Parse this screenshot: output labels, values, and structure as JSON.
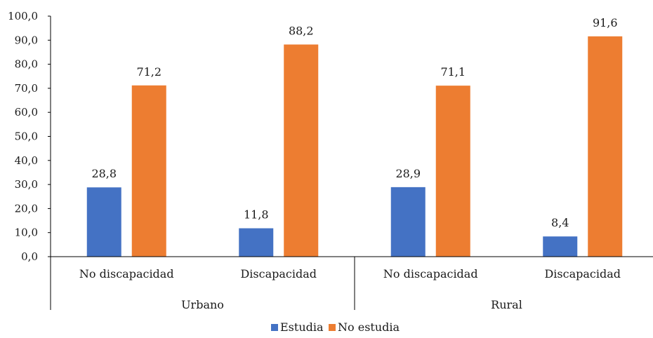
{
  "chart_data": {
    "type": "bar",
    "title": "",
    "xlabel": "",
    "ylabel": "",
    "ylim": [
      0,
      100
    ],
    "y_ticks": [
      "0,0",
      "10,0",
      "20,0",
      "30,0",
      "40,0",
      "50,0",
      "60,0",
      "70,0",
      "80,0",
      "90,0",
      "100,0"
    ],
    "groups": [
      {
        "label": "Urbano",
        "categories": [
          "No discapacidad",
          "Discapacidad"
        ]
      },
      {
        "label": "Rural",
        "categories": [
          "No discapacidad",
          "Discapacidad"
        ]
      }
    ],
    "categories": [
      "No discapacidad",
      "Discapacidad",
      "No discapacidad",
      "Discapacidad"
    ],
    "series": [
      {
        "name": "Estudia",
        "color": "#4472C4",
        "values": [
          28.8,
          11.8,
          28.9,
          8.4
        ],
        "labels": [
          "28,8",
          "11,8",
          "28,9",
          "8,4"
        ]
      },
      {
        "name": "No estudia",
        "color": "#ED7D31",
        "values": [
          71.2,
          88.2,
          71.1,
          91.6
        ],
        "labels": [
          "71,2",
          "88,2",
          "71,1",
          "91,6"
        ]
      }
    ],
    "grid": false,
    "legend_position": "bottom"
  }
}
